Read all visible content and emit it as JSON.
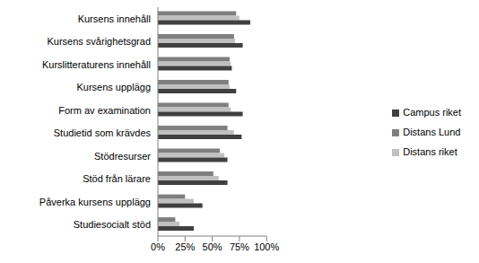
{
  "chart_data": {
    "type": "bar",
    "orientation": "horizontal",
    "categories": [
      "Kursens innehåll",
      "Kursens svårighetsgrad",
      "Kurslitteraturens innehåll",
      "Kursens upplägg",
      "Form av examination",
      "Studietid som krävdes",
      "Stödresurser",
      "Stöd från lärare",
      "Påverka kursens upplägg",
      "Studiesocialt stöd"
    ],
    "series": [
      {
        "name": "Distans Lund",
        "color": "#7f7f7f",
        "values": [
          72,
          70,
          66,
          65,
          65,
          64,
          57,
          51,
          25,
          16
        ]
      },
      {
        "name": "Distans riket",
        "color": "#c0c0c0",
        "values": [
          75,
          71,
          67,
          66,
          67,
          70,
          61,
          56,
          33,
          20
        ]
      },
      {
        "name": "Campus riket",
        "color": "#404040",
        "values": [
          85,
          78,
          68,
          72,
          78,
          77,
          64,
          64,
          41,
          33
        ]
      }
    ],
    "xlim": [
      0,
      100
    ],
    "xticks": [
      {
        "value": 0,
        "label": "0%"
      },
      {
        "value": 25,
        "label": "25%"
      },
      {
        "value": 50,
        "label": "50%"
      },
      {
        "value": 75,
        "label": "75%"
      },
      {
        "value": 100,
        "label": "100%"
      }
    ],
    "grid": false,
    "legend": "right"
  }
}
